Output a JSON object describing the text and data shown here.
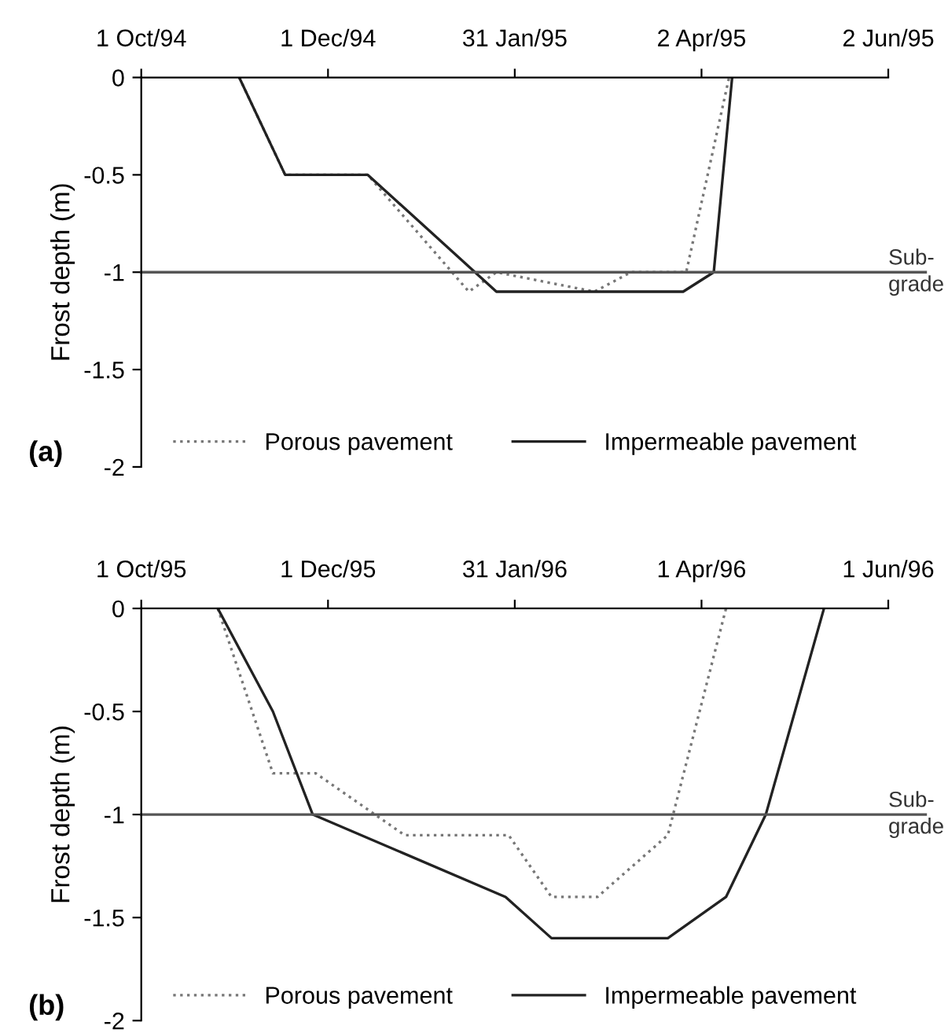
{
  "chart_data": [
    {
      "type": "line",
      "ylabel": "Frost depth (m)",
      "annotations": [
        "(a)"
      ],
      "xlim": [
        "1994-10-01",
        "1995-06-02"
      ],
      "xticks": [
        {
          "value": "1994-10-01",
          "label": "1 Oct/94"
        },
        {
          "value": "1994-12-01",
          "label": "1 Dec/94"
        },
        {
          "value": "1995-01-31",
          "label": "31 Jan/95"
        },
        {
          "value": "1995-04-02",
          "label": "2 Apr/95"
        },
        {
          "value": "1995-06-02",
          "label": "2 Jun/95"
        }
      ],
      "ylim": [
        -2,
        0
      ],
      "yticks": [
        0,
        -0.5,
        -1,
        -1.5,
        -2
      ],
      "legend": "bottom",
      "grid": false,
      "ref_lines": [
        {
          "axis": "y",
          "value": -1,
          "label": "Sub-\ngrade",
          "color": "#555555"
        }
      ],
      "series": [
        {
          "name": "Porous pavement",
          "color": "#777777",
          "line_style": "dotted",
          "x": [
            "1994-11-02",
            "1994-11-17",
            "1994-12-14",
            "1995-01-16",
            "1995-01-25",
            "1995-02-26",
            "1995-03-10",
            "1995-03-28",
            "1995-04-11"
          ],
          "values": [
            0,
            -0.5,
            -0.5,
            -1.1,
            -1.0,
            -1.1,
            -1.0,
            -1.0,
            0
          ]
        },
        {
          "name": "Impermeable pavement",
          "color": "#222222",
          "line_style": "solid",
          "x": [
            "1994-11-02",
            "1994-11-17",
            "1994-12-14",
            "1995-01-25",
            "1995-03-27",
            "1995-04-06",
            "1995-04-12"
          ],
          "values": [
            0,
            -0.5,
            -0.5,
            -1.1,
            -1.1,
            -1.0,
            0
          ]
        }
      ]
    },
    {
      "type": "line",
      "ylabel": "Frost depth (m)",
      "annotations": [
        "(b)"
      ],
      "xlim": [
        "1995-10-01",
        "1996-06-01"
      ],
      "xticks": [
        {
          "value": "1995-10-01",
          "label": "1 Oct/95"
        },
        {
          "value": "1995-12-01",
          "label": "1 Dec/95"
        },
        {
          "value": "1996-01-31",
          "label": "31 Jan/96"
        },
        {
          "value": "1996-04-01",
          "label": "1 Apr/96"
        },
        {
          "value": "1996-06-01",
          "label": "1 Jun/96"
        }
      ],
      "ylim": [
        -2,
        0
      ],
      "yticks": [
        0,
        -0.5,
        -1,
        -1.5,
        -2
      ],
      "legend": "bottom",
      "grid": false,
      "ref_lines": [
        {
          "axis": "y",
          "value": -1,
          "label": "Sub-\ngrade",
          "color": "#555555"
        }
      ],
      "series": [
        {
          "name": "Porous pavement",
          "color": "#777777",
          "line_style": "dotted",
          "x": [
            "1995-10-26",
            "1995-11-13",
            "1995-11-27",
            "1995-12-26",
            "1996-01-29",
            "1996-02-12",
            "1996-02-27",
            "1996-03-21",
            "1996-04-09"
          ],
          "values": [
            0,
            -0.8,
            -0.8,
            -1.1,
            -1.1,
            -1.4,
            -1.4,
            -1.1,
            0
          ]
        },
        {
          "name": "Impermeable pavement",
          "color": "#222222",
          "line_style": "solid",
          "x": [
            "1995-10-26",
            "1995-11-13",
            "1995-11-26",
            "1996-01-28",
            "1996-02-12",
            "1996-03-21",
            "1996-04-09",
            "1996-04-22",
            "1996-05-11"
          ],
          "values": [
            0,
            -0.5,
            -1.0,
            -1.4,
            -1.6,
            -1.6,
            -1.4,
            -1.0,
            0
          ]
        }
      ]
    }
  ]
}
